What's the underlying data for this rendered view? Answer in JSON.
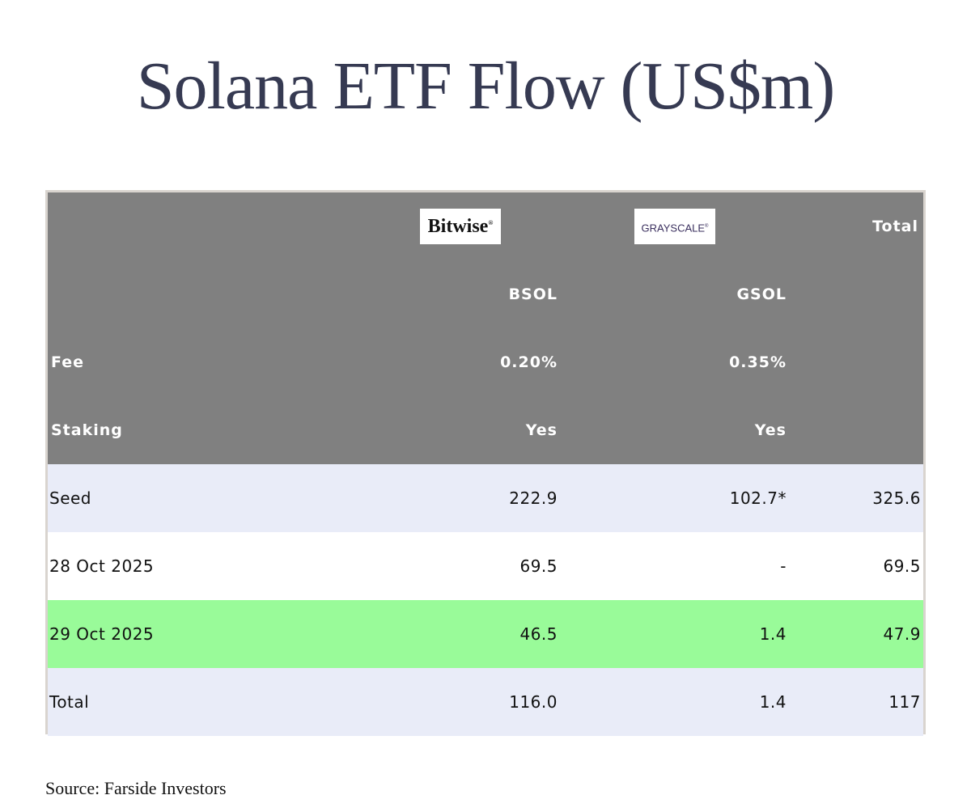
{
  "title": "Solana ETF Flow (US$m)",
  "header": {
    "logos": {
      "bitwise": "Bitwise",
      "grayscale": "GRAYSCALE"
    },
    "total_label": "Total",
    "tickers": [
      "BSOL",
      "GSOL"
    ],
    "fee": {
      "label": "Fee",
      "values": [
        "0.20%",
        "0.35%"
      ]
    },
    "staking": {
      "label": "Staking",
      "values": [
        "Yes",
        "Yes"
      ]
    }
  },
  "rows": [
    {
      "label": "Seed",
      "bsol": "222.9",
      "gsol": "102.7*",
      "total": "325.6"
    },
    {
      "label": "28 Oct 2025",
      "bsol": "69.5",
      "gsol": "-",
      "total": "69.5"
    },
    {
      "label": "29 Oct 2025",
      "bsol": "46.5",
      "gsol": "1.4",
      "total": "47.9"
    },
    {
      "label": "Total",
      "bsol": "116.0",
      "gsol": "1.4",
      "total": "117"
    }
  ],
  "colors": {
    "header_bg": "#808080",
    "row_blue": "#e9ecf8",
    "row_green": "#99fb99",
    "title": "#363a52"
  },
  "source": "Source: Farside Investors"
}
